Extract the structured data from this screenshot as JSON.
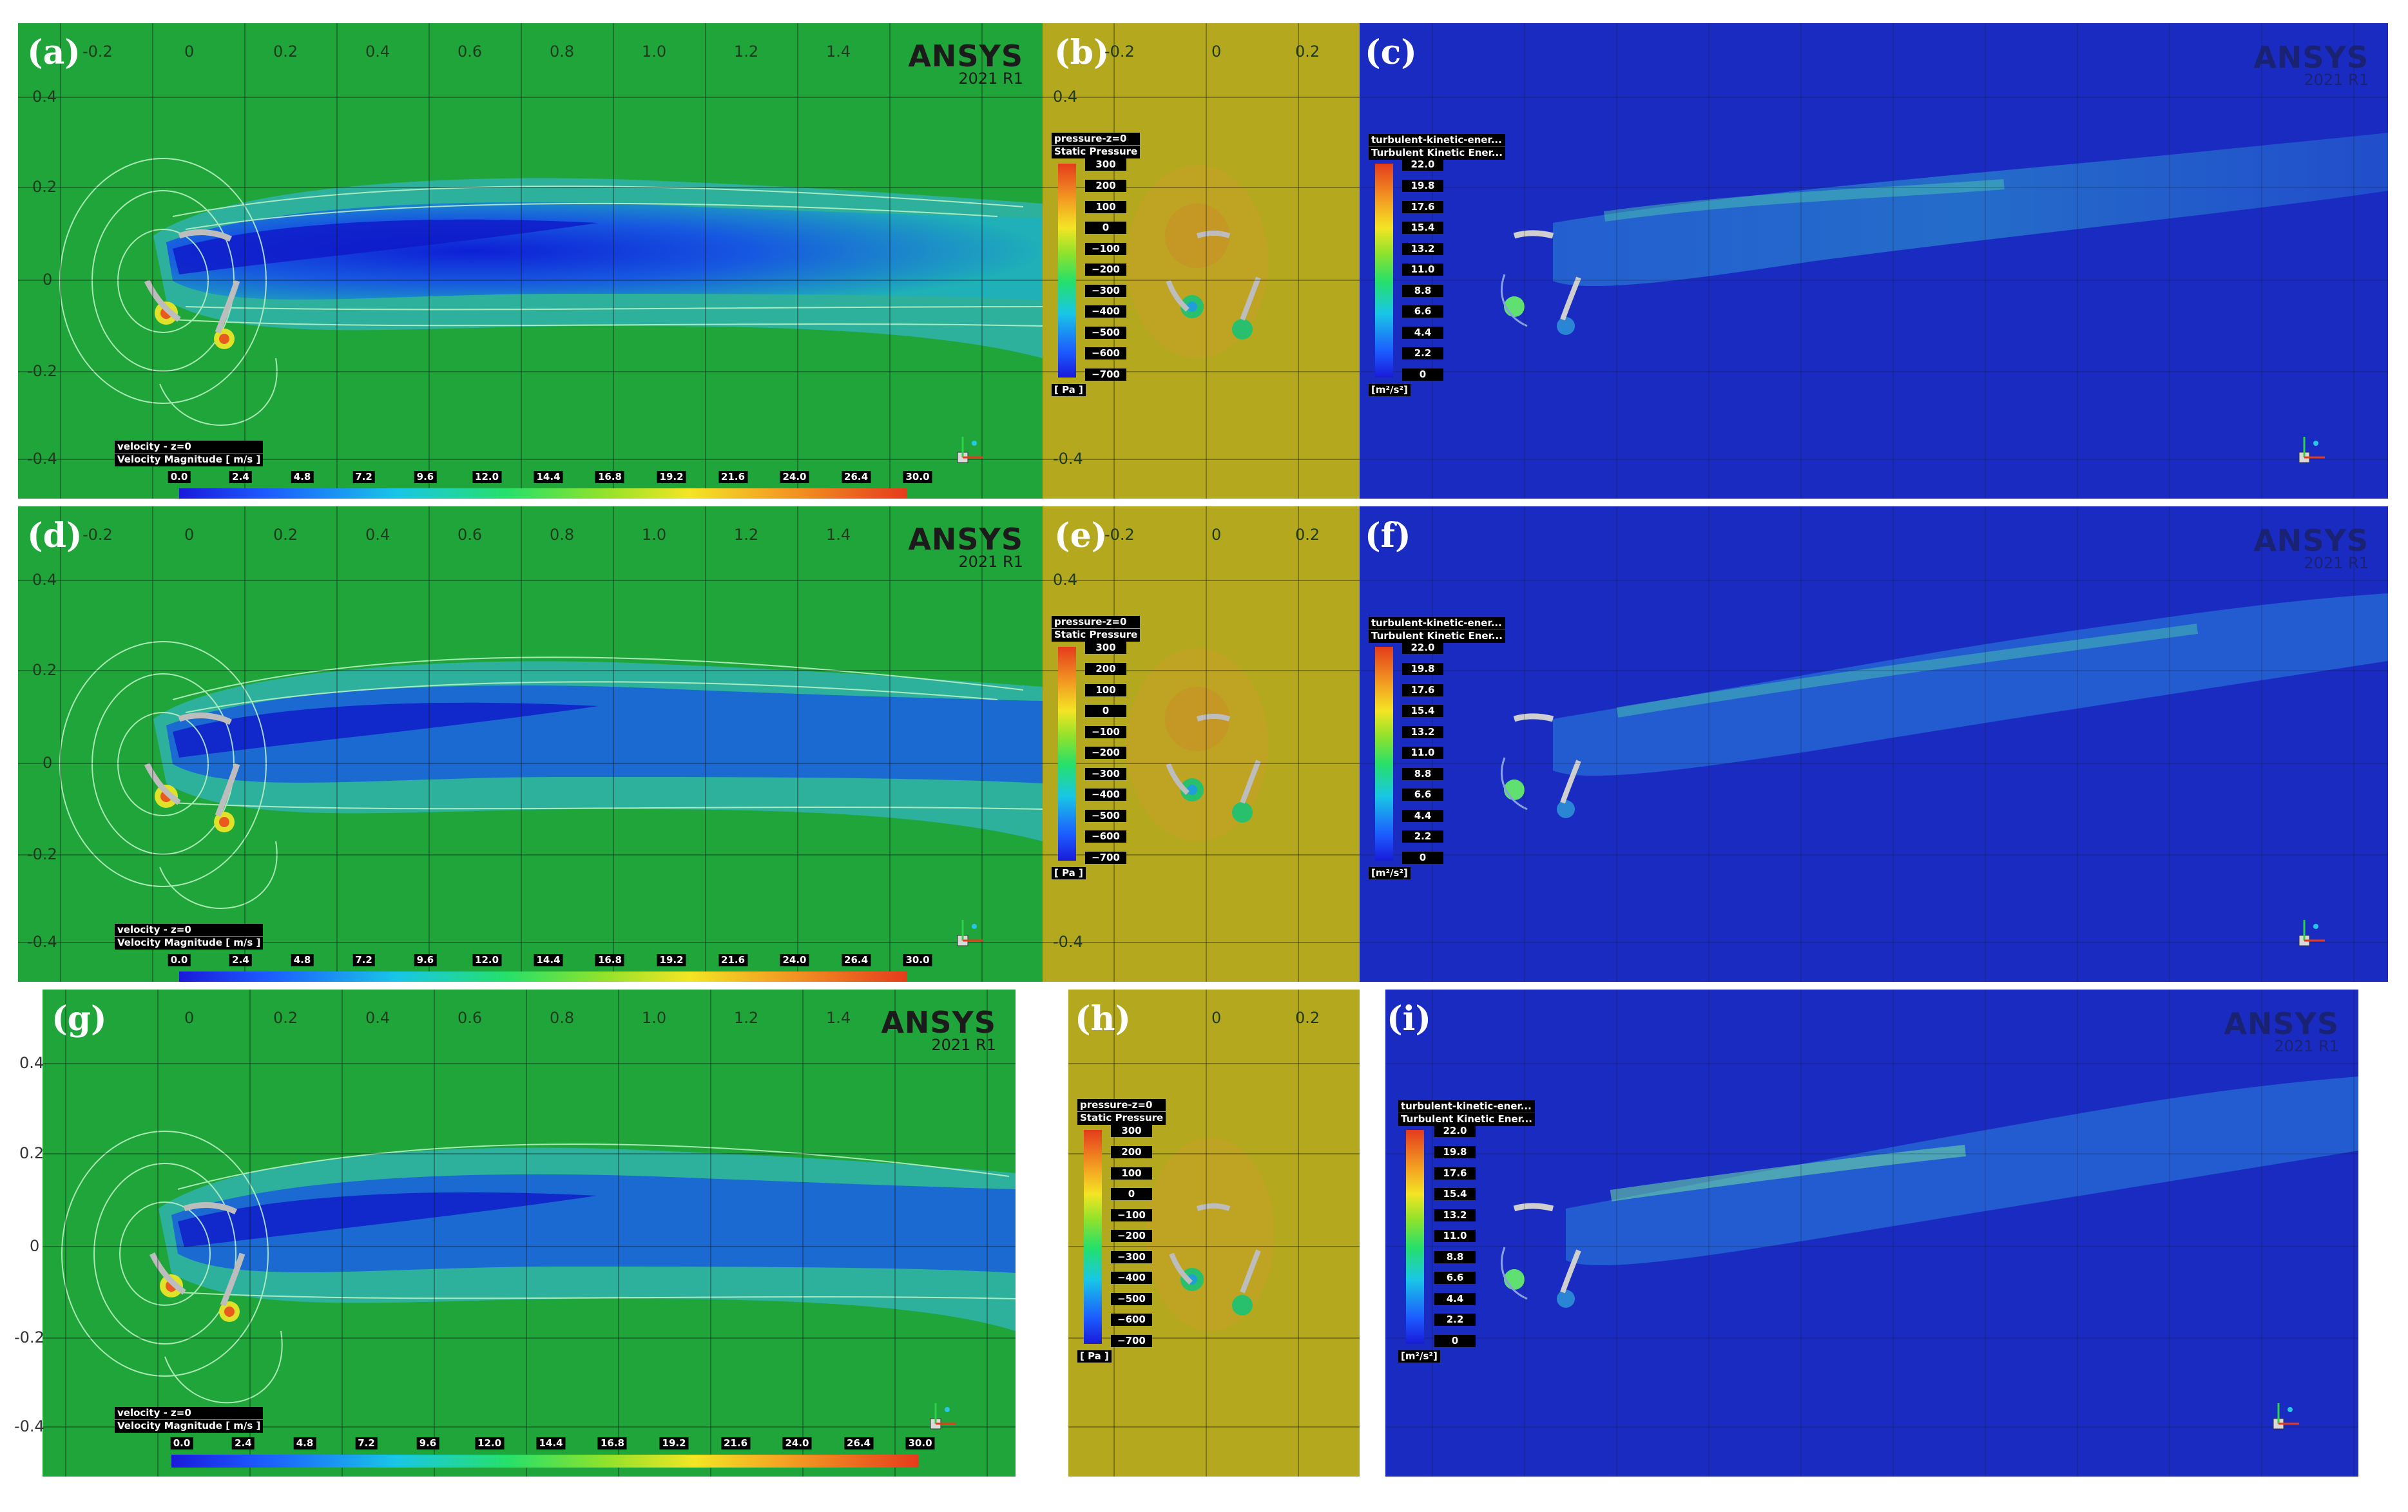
{
  "panels": [
    {
      "id": "a",
      "label": "(a)",
      "kind": "velocity"
    },
    {
      "id": "b",
      "label": "(b)",
      "kind": "pressure"
    },
    {
      "id": "c",
      "label": "(c)",
      "kind": "tke"
    },
    {
      "id": "d",
      "label": "(d)",
      "kind": "velocity"
    },
    {
      "id": "e",
      "label": "(e)",
      "kind": "pressure"
    },
    {
      "id": "f",
      "label": "(f)",
      "kind": "tke"
    },
    {
      "id": "g",
      "label": "(g)",
      "kind": "velocity"
    },
    {
      "id": "h",
      "label": "(h)",
      "kind": "pressure"
    },
    {
      "id": "i",
      "label": "(i)",
      "kind": "tke"
    }
  ],
  "branding": {
    "name": "ANSYS",
    "version": "2021 R1"
  },
  "axis_ticks": {
    "wide_x": [
      "-0.2",
      "0",
      "0.2",
      "0.4",
      "0.6",
      "0.8",
      "1.0",
      "1.2",
      "1.4"
    ],
    "narrow_x": [
      "-0.2",
      "0",
      "0.2"
    ],
    "y": [
      "0.4",
      "0.2",
      "0",
      "-0.2",
      "-0.4"
    ]
  },
  "velocity_legend": {
    "line1": "velocity - z=0",
    "line2": "Velocity Magnitude [ m/s ]",
    "values": [
      "0.0",
      "2.4",
      "4.8",
      "7.2",
      "9.6",
      "12.0",
      "14.4",
      "16.8",
      "19.2",
      "21.6",
      "24.0",
      "26.4",
      "30.0"
    ]
  },
  "pressure_legend": {
    "line1": "pressure-z=0",
    "line2": "Static Pressure",
    "values": [
      "300",
      "200",
      "100",
      "0",
      "−100",
      "−200",
      "−300",
      "−400",
      "−500",
      "−600",
      "−700"
    ],
    "unit": "[ Pa ]"
  },
  "tke_legend": {
    "line1": "turbulent-kinetic-ener...",
    "line2": "Turbulent Kinetic Ener...",
    "values": [
      "22.0",
      "19.8",
      "17.6",
      "15.4",
      "13.2",
      "11.0",
      "8.8",
      "6.6",
      "4.4",
      "2.2",
      "0"
    ],
    "unit": "[m²/s²]"
  },
  "colors": {
    "velocity_bg": "#1ea33b",
    "pressure_bg": "#b3a81e",
    "tke_bg": "#1a2bc4",
    "wake_blue": "#1436d8"
  }
}
